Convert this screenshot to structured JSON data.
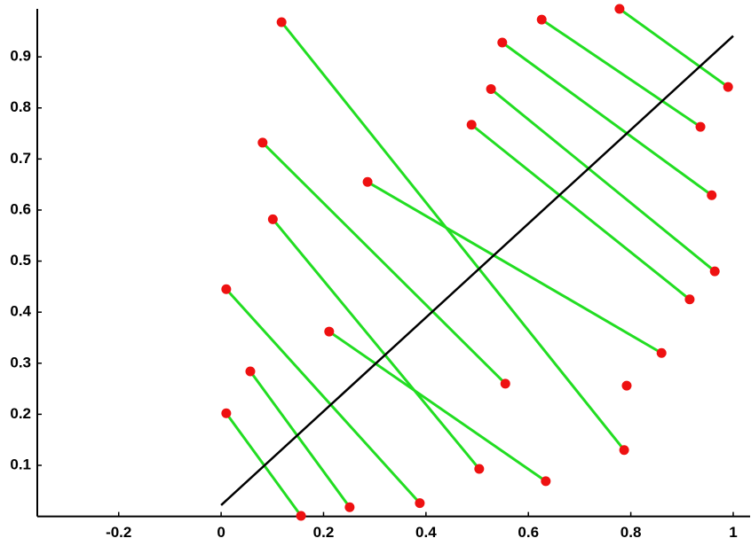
{
  "chart_data": {
    "type": "segments",
    "xlim": [
      -0.359,
      1.033
    ],
    "ylim": [
      0,
      0.994
    ],
    "xticks": [
      -0.2,
      0,
      0.2,
      0.4,
      0.6,
      0.8,
      1
    ],
    "yticks": [
      0.1,
      0.2,
      0.3,
      0.4,
      0.5,
      0.6,
      0.7,
      0.8,
      0.9
    ],
    "segment_color": "#22dd22",
    "point_color": "#ee1111",
    "line_color": "#000000",
    "x1": [
      0.01,
      0.057,
      0.01,
      0.211,
      0.101,
      0.081,
      0.286,
      0.118,
      0.489,
      0.527,
      0.549,
      0.626,
      0.778
    ],
    "y1": [
      0.202,
      0.284,
      0.445,
      0.362,
      0.582,
      0.732,
      0.655,
      0.968,
      0.767,
      0.837,
      0.928,
      0.973,
      0.994
    ],
    "x2": [
      0.156,
      0.251,
      0.388,
      0.634,
      0.504,
      0.555,
      0.86,
      0.787,
      0.915,
      0.964,
      0.958,
      0.936,
      0.99
    ],
    "y2": [
      0.001,
      0.018,
      0.026,
      0.069,
      0.093,
      0.26,
      0.32,
      0.13,
      0.425,
      0.48,
      0.629,
      0.763,
      0.841
    ],
    "extra_points": {
      "x": [
        0.792
      ],
      "y": [
        0.256
      ]
    },
    "line": {
      "x": [
        0,
        1
      ],
      "y": [
        0.022,
        0.941
      ]
    }
  }
}
